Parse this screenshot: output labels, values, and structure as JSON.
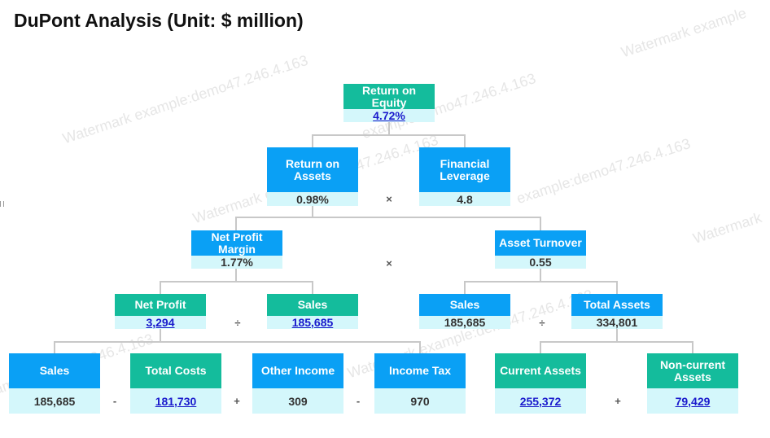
{
  "title": "DuPont Analysis (Unit: $ million)",
  "watermarks": [
    "Watermark example:demo47.246.4.163",
    "example:demo47.246.4.163",
    "Watermark example",
    "Watermark example:demo47.246.4.163",
    "example:demo47.246.4.163",
    "Watermark",
    "Watermark example:demo47.246.4.163",
    "example:demo47.246.4.163"
  ],
  "colors": {
    "blue": "#0aa0f5",
    "green": "#14bc9c",
    "value_bg": "#d4f7fb",
    "link": "#1a1acc"
  },
  "nodes": {
    "roe": {
      "label": "Return on Equity",
      "value": "4.72%"
    },
    "roa": {
      "label": "Return on Assets",
      "value": "0.98%"
    },
    "lev": {
      "label": "Financial Leverage",
      "value": "4.8"
    },
    "npm": {
      "label": "Net Profit Margin",
      "value": "1.77%"
    },
    "at": {
      "label": "Asset Turnover",
      "value": "0.55"
    },
    "np": {
      "label": "Net Profit",
      "value": "3,294"
    },
    "sales1": {
      "label": "Sales",
      "value": "185,685"
    },
    "sales2": {
      "label": "Sales",
      "value": "185,685"
    },
    "ta": {
      "label": "Total Assets",
      "value": "334,801"
    },
    "sales3": {
      "label": "Sales",
      "value": "185,685"
    },
    "tc": {
      "label": "Total Costs",
      "value": "181,730"
    },
    "oi": {
      "label": "Other Income",
      "value": "309"
    },
    "it": {
      "label": "Income Tax",
      "value": "970"
    },
    "ca": {
      "label": "Current Assets",
      "value": "255,372"
    },
    "nca": {
      "label": "Non-current Assets",
      "value": "79,429"
    }
  },
  "operators": {
    "roa_lev": "×",
    "npm_at": "×",
    "np_sales": "÷",
    "sales_ta": "÷",
    "sales_tc": "-",
    "tc_oi": "+",
    "oi_it": "-",
    "ca_nca": "+"
  }
}
